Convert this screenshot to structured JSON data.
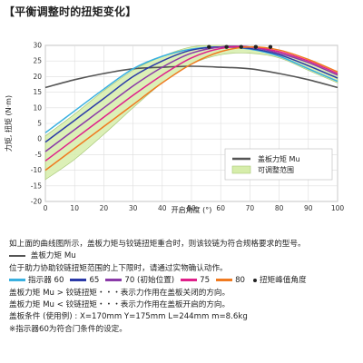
{
  "title": "【平衡调整时的扭矩变化】",
  "chart_data": {
    "type": "line",
    "xlabel": "开启角度 (°)",
    "ylabel": "力矩, 扭矩 (N·m)",
    "xlim": [
      0,
      100
    ],
    "ylim": [
      -20,
      30
    ],
    "xticks": [
      0,
      10,
      20,
      30,
      40,
      50,
      60,
      70,
      80,
      90,
      100
    ],
    "yticks": [
      -20,
      -15,
      -10,
      -5,
      0,
      5,
      10,
      15,
      20,
      25,
      30
    ],
    "grid": true,
    "x": [
      0,
      10,
      20,
      30,
      40,
      50,
      60,
      70,
      80,
      90,
      100
    ],
    "lid_moment": {
      "name": "盖板力矩 Mu",
      "color": "#555555",
      "values": [
        16.5,
        19,
        21,
        22.5,
        23,
        23.3,
        23,
        22.5,
        21,
        19,
        16.5
      ]
    },
    "range_band": {
      "name": "可调整范围",
      "color": "#d6edaa",
      "lower": [
        -13,
        -6.5,
        1.5,
        10,
        18,
        24,
        27,
        27.5,
        26,
        22,
        18
      ],
      "upper": [
        1,
        8,
        15.5,
        22,
        26.5,
        29.5,
        30,
        29.5,
        27.5,
        25,
        21
      ]
    },
    "series": [
      {
        "name": "指示器 60",
        "color": "#3ab0e0",
        "values": [
          2,
          9,
          16,
          22.5,
          26.5,
          28.8,
          29.5,
          28.8,
          26.5,
          22.5,
          18.5
        ]
      },
      {
        "name": "65",
        "color": "#2b3aa8",
        "values": [
          -1,
          6,
          13,
          20,
          25,
          28.5,
          29.5,
          29,
          27,
          23.5,
          19.5
        ]
      },
      {
        "name": "70 (初始位置)",
        "color": "#8a3aa8",
        "values": [
          -4,
          3,
          10,
          17,
          23,
          27.5,
          29.5,
          29.5,
          27.5,
          24.5,
          20.5
        ]
      },
      {
        "name": "75",
        "color": "#e0208a",
        "values": [
          -7,
          0,
          7,
          14,
          20.5,
          26,
          29,
          29.5,
          28,
          25,
          21
        ]
      },
      {
        "name": "80",
        "color": "#f07a20",
        "values": [
          -10,
          -3,
          4,
          11,
          18,
          24,
          28,
          29.5,
          28.5,
          25.5,
          21.5
        ]
      }
    ],
    "peak_label": "扭矩峰值角度",
    "peaks": [
      {
        "x": 56,
        "y": 29.5
      },
      {
        "x": 62,
        "y": 29.5
      },
      {
        "x": 67,
        "y": 29.5
      },
      {
        "x": 72,
        "y": 29.5
      },
      {
        "x": 77,
        "y": 29.5
      }
    ]
  },
  "notes": {
    "line1": "如上面的曲线图所示，盖板力矩与铰链扭矩重合时，则该铰链为符合规格要求的型号。",
    "lid_moment_label": "盖板力矩 Mu",
    "line3": "位于助力协助铰链扭矩范围的上下限时，请通过实物确认动作。",
    "legend": {
      "items": [
        {
          "label": "指示器 60",
          "color": "#3ab0e0"
        },
        {
          "label": "65",
          "color": "#2b3aa8"
        },
        {
          "label": "70 (初始位置)",
          "color": "#8a3aa8"
        },
        {
          "label": "75",
          "color": "#e0208a"
        },
        {
          "label": "80",
          "color": "#f07a20"
        }
      ],
      "peak_label": "扭矩峰值角度"
    },
    "line5": "盖板力矩 Mu > 铰链扭矩・・・表示力作用在盖板关闭的方向。",
    "line6": "盖板力矩 Mu < 铰链扭矩・・・表示力作用在盖板开启的方向。",
    "line7": "盖板条件 (使用例) : X=170mm   Y=175mm   L=244mm   m=8.6kg",
    "line8": "※指示器60为符合门条件的设定。"
  }
}
